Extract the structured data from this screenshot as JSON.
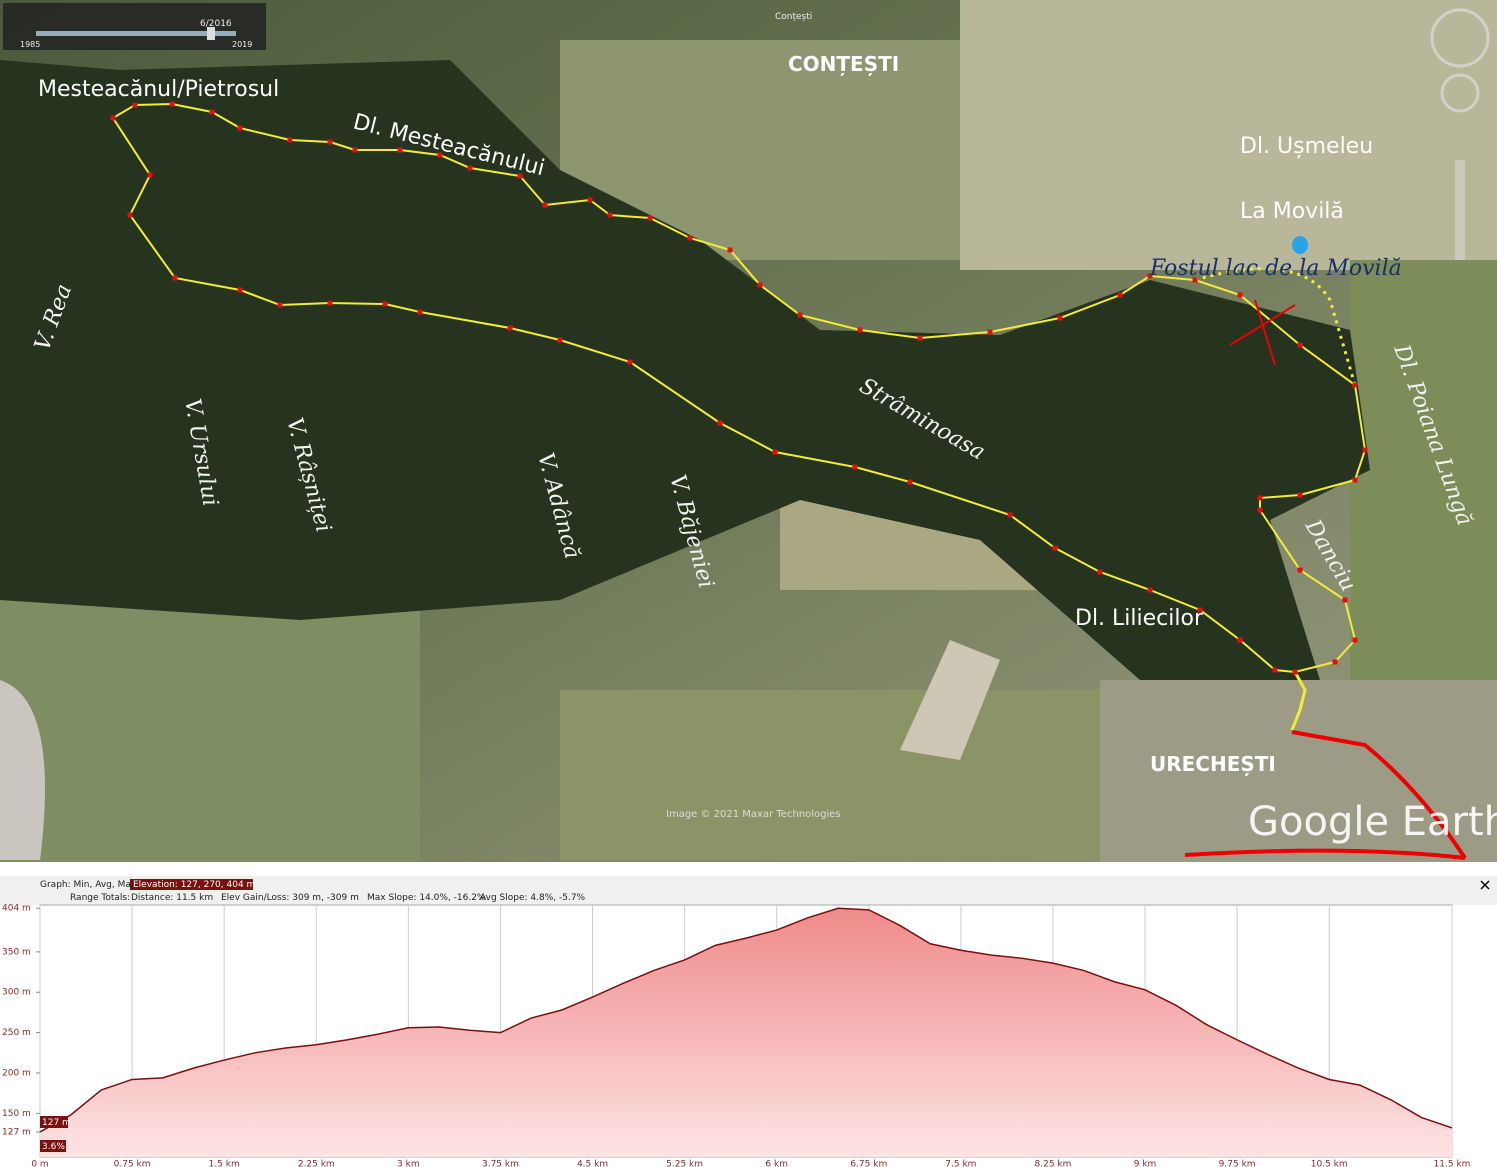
{
  "map": {
    "timeline": {
      "date": "6/2016",
      "start": "1985",
      "end": "2019"
    },
    "labels": [
      "Conțești",
      "CONȚEȘTI",
      "Mesteacănul/Pietrosul",
      "Dl. Mesteacănului",
      "Dl. Ușmeleu",
      "La Movilă",
      "Fostul lac de la Movilă",
      "V. Rea",
      "V. Ursului",
      "V. Râșniței",
      "V. Adâncă",
      "V. Băjeniei",
      "Strâminoasa",
      "Dl. Poiana Lungă",
      "Danciu",
      "Dl. Liliecilor",
      "URECHEȘTI"
    ],
    "attribution": "Image © 2021 Maxar Technologies",
    "logo": "Google Earth"
  },
  "profile_header": {
    "graph": "Graph: Min, Avg, Max",
    "elevation": "Elevation: 127, 270, 404 m",
    "range": "Range Totals:",
    "distance": "Distance: 11.5 km",
    "gain": "Elev Gain/Loss: 309 m, -309 m",
    "max_slope": "Max Slope: 14.0%, -16.2%",
    "avg_slope": "Avg Slope: 4.8%, -5.7%"
  },
  "cursor": {
    "elevation": "127 m",
    "slope": "3.6%"
  },
  "chart_data": {
    "type": "area",
    "x": [
      0,
      0.25,
      0.5,
      0.75,
      1,
      1.25,
      1.5,
      1.75,
      2,
      2.25,
      2.5,
      2.75,
      3,
      3.25,
      3.5,
      3.75,
      4,
      4.25,
      4.5,
      4.75,
      5,
      5.25,
      5.5,
      5.75,
      6,
      6.25,
      6.5,
      6.75,
      7,
      7.25,
      7.5,
      7.75,
      8,
      8.25,
      8.5,
      8.75,
      9,
      9.25,
      9.5,
      9.75,
      10,
      10.25,
      10.5,
      10.75,
      11,
      11.25,
      11.5
    ],
    "series": [
      {
        "color": "#7a1010",
        "values": [
          127,
          148,
          179,
          192,
          194,
          206,
          216,
          225,
          231,
          235,
          241,
          248,
          256,
          257,
          253,
          250,
          268,
          278,
          294,
          311,
          327,
          340,
          358,
          367,
          377,
          392,
          404,
          402,
          383,
          360,
          352,
          346,
          342,
          336,
          327,
          313,
          303,
          284,
          260,
          241,
          223,
          206,
          192,
          185,
          167,
          145,
          132
        ]
      }
    ],
    "xlim": [
      0,
      11.5
    ],
    "xticks": [
      {
        "value": 0,
        "label": "0 m"
      },
      {
        "value": 0.75,
        "label": "0.75 km"
      },
      {
        "value": 1.5,
        "label": "1.5 km"
      },
      {
        "value": 2.25,
        "label": "2.25 km"
      },
      {
        "value": 3,
        "label": "3 km"
      },
      {
        "value": 3.75,
        "label": "3.75 km"
      },
      {
        "value": 4.5,
        "label": "4.5 km"
      },
      {
        "value": 5.25,
        "label": "5.25 km"
      },
      {
        "value": 6,
        "label": "6 km"
      },
      {
        "value": 6.75,
        "label": "6.75 km"
      },
      {
        "value": 7.5,
        "label": "7.5 km"
      },
      {
        "value": 8.25,
        "label": "8.25 km"
      },
      {
        "value": 9,
        "label": "9 km"
      },
      {
        "value": 9.75,
        "label": "9.75 km"
      },
      {
        "value": 10.5,
        "label": "10.5 km"
      },
      {
        "value": 11.5,
        "label": "11.5 km"
      }
    ],
    "ylim": [
      96,
      408
    ],
    "yticks": [
      {
        "value": 127,
        "label": "127 m"
      },
      {
        "value": 150,
        "label": "150 m"
      },
      {
        "value": 200,
        "label": "200 m"
      },
      {
        "value": 250,
        "label": "250 m"
      },
      {
        "value": 300,
        "label": "300 m"
      },
      {
        "value": 350,
        "label": "350 m"
      },
      {
        "value": 404,
        "label": "404 m"
      }
    ]
  }
}
